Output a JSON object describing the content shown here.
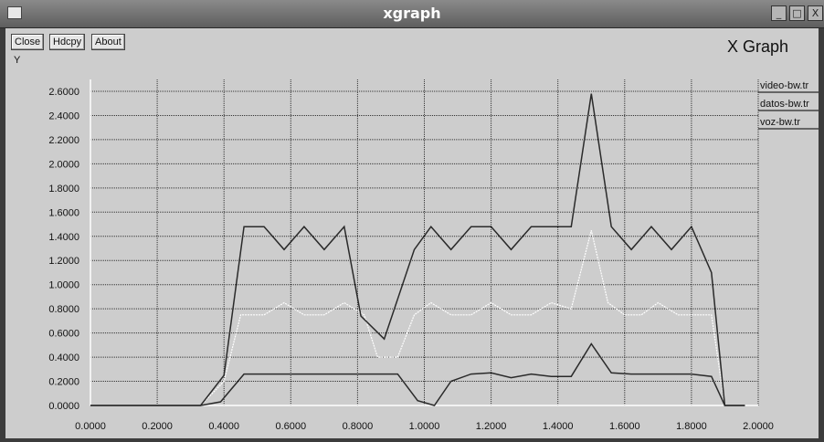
{
  "window": {
    "title": "xgraph",
    "controls": {
      "minimize": "_",
      "maximize": "□",
      "close": "X"
    }
  },
  "toolbar": {
    "close_label": "Close",
    "hdcpy_label": "Hdcpy",
    "about_label": "About"
  },
  "graph_title": "X Graph",
  "colors": {
    "background": "#cdcdcd",
    "grid": "#333333",
    "axis": "#ffffff",
    "video": "#ffffff",
    "datos": "#2a2a2a",
    "voz": "#2a2a2a"
  },
  "chart_data": {
    "type": "line",
    "title": "X Graph",
    "xlabel": "",
    "ylabel": "Y",
    "xlim": [
      0,
      2.0
    ],
    "ylim": [
      0,
      2.6
    ],
    "grid": true,
    "legend_position": "top-right",
    "x_ticks": [
      "0.0000",
      "0.2000",
      "0.4000",
      "0.6000",
      "0.8000",
      "1.0000",
      "1.2000",
      "1.4000",
      "1.6000",
      "1.8000",
      "2.0000"
    ],
    "y_ticks": [
      "0.0000",
      "0.2000",
      "0.4000",
      "0.6000",
      "0.8000",
      "1.0000",
      "1.2000",
      "1.4000",
      "1.6000",
      "1.8000",
      "2.0000",
      "2.2000",
      "2.4000",
      "2.6000"
    ],
    "series": [
      {
        "name": "video-bw.tr",
        "points": [
          [
            0,
            0
          ],
          [
            0.33,
            0
          ],
          [
            0.4,
            0.2
          ],
          [
            0.45,
            0.75
          ],
          [
            0.52,
            0.75
          ],
          [
            0.58,
            0.85
          ],
          [
            0.64,
            0.75
          ],
          [
            0.7,
            0.75
          ],
          [
            0.76,
            0.85
          ],
          [
            0.82,
            0.75
          ],
          [
            0.86,
            0.4
          ],
          [
            0.92,
            0.4
          ],
          [
            0.97,
            0.75
          ],
          [
            1.02,
            0.85
          ],
          [
            1.08,
            0.75
          ],
          [
            1.14,
            0.75
          ],
          [
            1.2,
            0.85
          ],
          [
            1.26,
            0.75
          ],
          [
            1.32,
            0.75
          ],
          [
            1.38,
            0.85
          ],
          [
            1.44,
            0.8
          ],
          [
            1.5,
            1.45
          ],
          [
            1.55,
            0.85
          ],
          [
            1.6,
            0.75
          ],
          [
            1.65,
            0.75
          ],
          [
            1.7,
            0.85
          ],
          [
            1.76,
            0.75
          ],
          [
            1.82,
            0.75
          ],
          [
            1.86,
            0.75
          ],
          [
            1.9,
            0
          ]
        ]
      },
      {
        "name": "datos-bw.tr",
        "points": [
          [
            0,
            0
          ],
          [
            0.33,
            0
          ],
          [
            0.4,
            0.25
          ],
          [
            0.46,
            1.48
          ],
          [
            0.52,
            1.48
          ],
          [
            0.58,
            1.29
          ],
          [
            0.64,
            1.48
          ],
          [
            0.7,
            1.29
          ],
          [
            0.76,
            1.48
          ],
          [
            0.81,
            0.74
          ],
          [
            0.88,
            0.55
          ],
          [
            0.97,
            1.29
          ],
          [
            1.02,
            1.48
          ],
          [
            1.08,
            1.29
          ],
          [
            1.14,
            1.48
          ],
          [
            1.2,
            1.48
          ],
          [
            1.26,
            1.29
          ],
          [
            1.32,
            1.48
          ],
          [
            1.38,
            1.48
          ],
          [
            1.44,
            1.48
          ],
          [
            1.5,
            2.58
          ],
          [
            1.56,
            1.48
          ],
          [
            1.62,
            1.29
          ],
          [
            1.68,
            1.48
          ],
          [
            1.74,
            1.29
          ],
          [
            1.8,
            1.48
          ],
          [
            1.86,
            1.1
          ],
          [
            1.9,
            0
          ],
          [
            1.96,
            0
          ]
        ]
      },
      {
        "name": "voz-bw.tr",
        "points": [
          [
            0,
            0
          ],
          [
            0.33,
            0
          ],
          [
            0.39,
            0.03
          ],
          [
            0.46,
            0.26
          ],
          [
            0.52,
            0.26
          ],
          [
            0.58,
            0.26
          ],
          [
            0.64,
            0.26
          ],
          [
            0.7,
            0.26
          ],
          [
            0.76,
            0.26
          ],
          [
            0.82,
            0.26
          ],
          [
            0.92,
            0.26
          ],
          [
            0.98,
            0.04
          ],
          [
            1.03,
            0
          ],
          [
            1.08,
            0.2
          ],
          [
            1.14,
            0.26
          ],
          [
            1.2,
            0.27
          ],
          [
            1.26,
            0.23
          ],
          [
            1.32,
            0.26
          ],
          [
            1.38,
            0.24
          ],
          [
            1.44,
            0.24
          ],
          [
            1.5,
            0.51
          ],
          [
            1.56,
            0.27
          ],
          [
            1.62,
            0.26
          ],
          [
            1.68,
            0.26
          ],
          [
            1.74,
            0.26
          ],
          [
            1.8,
            0.26
          ],
          [
            1.86,
            0.24
          ],
          [
            1.9,
            0
          ],
          [
            1.96,
            0
          ]
        ]
      }
    ]
  }
}
